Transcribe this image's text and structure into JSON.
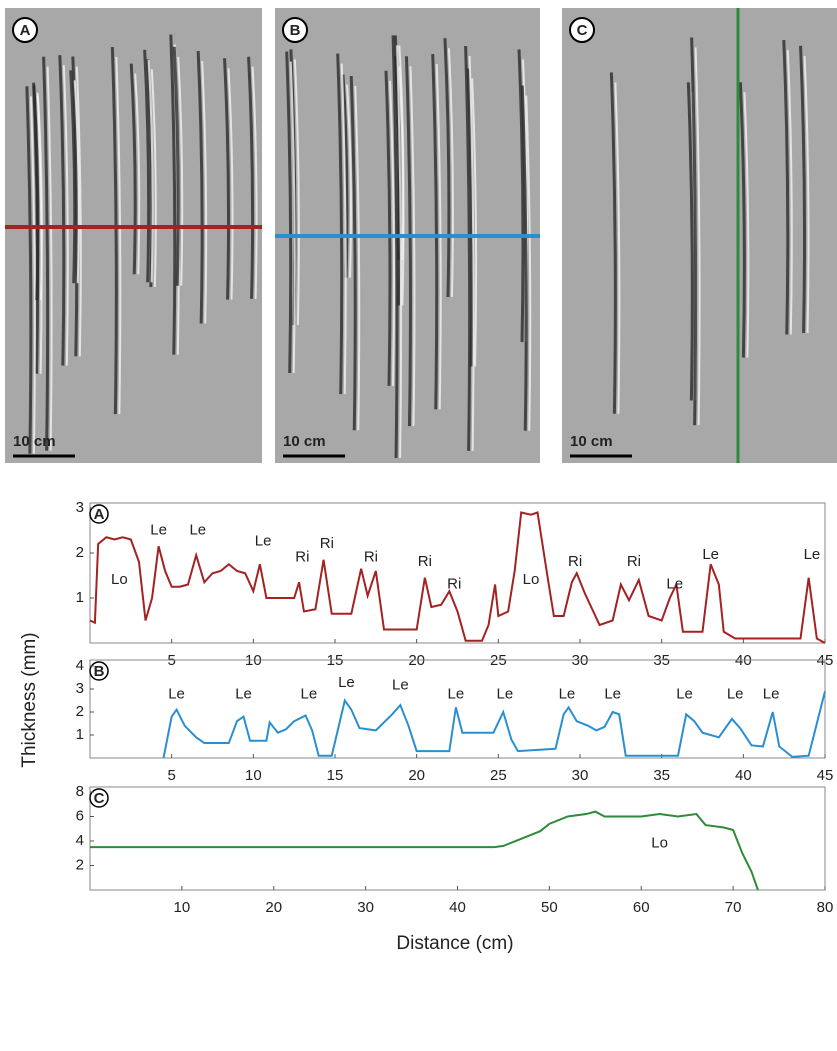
{
  "panels": [
    {
      "label": "A",
      "scale": "10 cm"
    },
    {
      "label": "B",
      "scale": "10 cm"
    },
    {
      "label": "C",
      "scale": "10 cm"
    }
  ],
  "chart_data": [
    {
      "type": "line",
      "label": "A",
      "xlim": [
        0,
        45
      ],
      "ylim": [
        0,
        3
      ],
      "xticks": [
        5,
        10,
        15,
        20,
        25,
        30,
        35,
        40,
        45
      ],
      "yticks": [
        1,
        2,
        3
      ],
      "series": [
        {
          "color": "#a32222",
          "x": [
            0,
            0.3,
            0.5,
            1,
            1.5,
            2,
            2.5,
            3,
            3.4,
            3.8,
            4.2,
            4.6,
            5,
            5.5,
            6,
            6.5,
            7,
            7.5,
            8,
            8.5,
            9,
            9.5,
            10,
            10.4,
            10.8,
            12.5,
            12.8,
            13.1,
            13.8,
            14.3,
            14.8,
            16,
            16.6,
            17,
            17.5,
            18,
            20,
            20.5,
            20.9,
            21.5,
            22,
            22.5,
            23,
            24,
            24.4,
            24.8,
            25,
            25.6,
            26,
            26.4,
            27,
            27.4,
            28,
            28.4,
            29,
            29.5,
            29.8,
            30.3,
            31.2,
            32,
            32.5,
            33,
            33.6,
            34.2,
            35,
            35.5,
            35.9,
            36.3,
            37.5,
            38,
            38.5,
            38.8,
            39.5,
            43.5,
            44,
            44.5,
            45
          ],
          "values": [
            0.5,
            0.45,
            2.2,
            2.35,
            2.3,
            2.35,
            2.3,
            1.8,
            0.5,
            1.0,
            2.15,
            1.6,
            1.25,
            1.25,
            1.3,
            1.95,
            1.35,
            1.55,
            1.6,
            1.75,
            1.6,
            1.55,
            1.15,
            1.75,
            1.0,
            1.0,
            1.35,
            0.7,
            0.75,
            1.85,
            0.65,
            0.65,
            1.65,
            1.05,
            1.6,
            0.3,
            0.3,
            1.45,
            0.8,
            0.85,
            1.15,
            0.7,
            0.05,
            0.05,
            0.4,
            1.3,
            0.6,
            0.7,
            1.6,
            2.9,
            2.85,
            2.9,
            1.5,
            0.6,
            0.6,
            1.35,
            1.55,
            1.1,
            0.4,
            0.5,
            1.3,
            0.95,
            1.4,
            0.6,
            0.5,
            1.0,
            1.3,
            0.25,
            0.25,
            1.75,
            1.3,
            0.25,
            0.1,
            0.1,
            1.45,
            0.1,
            0
          ]
        }
      ],
      "annotations": [
        {
          "text": "Lo",
          "x": 1.8,
          "y": 1.4
        },
        {
          "text": "Le",
          "x": 4.2,
          "y": 2.5
        },
        {
          "text": "Le",
          "x": 6.6,
          "y": 2.5
        },
        {
          "text": "Le",
          "x": 10.6,
          "y": 2.25
        },
        {
          "text": "Ri",
          "x": 13,
          "y": 1.9
        },
        {
          "text": "Ri",
          "x": 14.5,
          "y": 2.2
        },
        {
          "text": "Ri",
          "x": 17.2,
          "y": 1.9
        },
        {
          "text": "Ri",
          "x": 20.5,
          "y": 1.8
        },
        {
          "text": "Ri",
          "x": 22.3,
          "y": 1.3
        },
        {
          "text": "Lo",
          "x": 27,
          "y": 1.4
        },
        {
          "text": "Ri",
          "x": 29.7,
          "y": 1.8
        },
        {
          "text": "Ri",
          "x": 33.3,
          "y": 1.8
        },
        {
          "text": "Le",
          "x": 35.8,
          "y": 1.3
        },
        {
          "text": "Le",
          "x": 38,
          "y": 1.95
        },
        {
          "text": "Le",
          "x": 44.2,
          "y": 1.95
        }
      ]
    },
    {
      "type": "line",
      "label": "B",
      "ylabel": "Thickness (mm)",
      "xlim": [
        0,
        45
      ],
      "ylim": [
        0,
        4
      ],
      "xticks": [
        5,
        10,
        15,
        20,
        25,
        30,
        35,
        40,
        45
      ],
      "yticks": [
        1,
        2,
        3,
        4
      ],
      "series": [
        {
          "color": "#2a8fd0",
          "x": [
            4.5,
            5,
            5.3,
            5.8,
            6.5,
            7,
            8.5,
            9,
            9.4,
            9.8,
            10.8,
            11,
            11.5,
            12,
            12.5,
            13.2,
            13.6,
            14,
            14.8,
            15.2,
            15.6,
            16,
            16.5,
            17.5,
            18.5,
            19,
            19.5,
            20,
            22,
            22.4,
            22.8,
            24.7,
            25.3,
            25.8,
            26.2,
            28.5,
            29,
            29.3,
            29.8,
            30.5,
            31,
            31.5,
            32,
            32.4,
            32.8,
            36,
            36.5,
            37,
            37.5,
            38.5,
            39.3,
            39.8,
            40.5,
            41.2,
            41.8,
            42.2,
            43,
            44,
            44.5,
            45
          ],
          "values": [
            0,
            1.8,
            2.1,
            1.4,
            0.9,
            0.65,
            0.65,
            1.6,
            1.8,
            0.75,
            0.75,
            1.55,
            1.1,
            1.25,
            1.6,
            1.85,
            1.2,
            0.1,
            0.1,
            1.3,
            2.5,
            2.1,
            1.3,
            1.2,
            1.9,
            2.3,
            1.4,
            0.3,
            0.3,
            2.2,
            1.1,
            1.1,
            2.0,
            0.8,
            0.3,
            0.4,
            1.9,
            2.2,
            1.6,
            1.4,
            1.2,
            1.35,
            2.0,
            1.9,
            0.1,
            0.1,
            1.9,
            1.6,
            1.1,
            0.9,
            1.7,
            1.3,
            0.55,
            0.5,
            2.0,
            0.5,
            0.05,
            0.1,
            1.5,
            2.9
          ]
        }
      ],
      "annotations": [
        {
          "text": "Le",
          "x": 5.3,
          "y": 2.75
        },
        {
          "text": "Le",
          "x": 9.4,
          "y": 2.75
        },
        {
          "text": "Le",
          "x": 13.4,
          "y": 2.75
        },
        {
          "text": "Le",
          "x": 15.7,
          "y": 3.25
        },
        {
          "text": "Le",
          "x": 19,
          "y": 3.15
        },
        {
          "text": "Le",
          "x": 22.4,
          "y": 2.75
        },
        {
          "text": "Le",
          "x": 25.4,
          "y": 2.75
        },
        {
          "text": "Le",
          "x": 29.2,
          "y": 2.75
        },
        {
          "text": "Le",
          "x": 32,
          "y": 2.75
        },
        {
          "text": "Le",
          "x": 36.4,
          "y": 2.75
        },
        {
          "text": "Le",
          "x": 39.5,
          "y": 2.75
        },
        {
          "text": "Le",
          "x": 41.7,
          "y": 2.75
        }
      ]
    },
    {
      "type": "line",
      "label": "C",
      "xlabel": "Distance (cm)",
      "xlim": [
        0,
        80
      ],
      "ylim": [
        0,
        8
      ],
      "xticks": [
        10,
        20,
        30,
        40,
        50,
        60,
        70,
        80
      ],
      "yticks": [
        2,
        4,
        6,
        8
      ],
      "series": [
        {
          "color": "#2e8b3a",
          "x": [
            0,
            44,
            45,
            47,
            49,
            50,
            52,
            54,
            55,
            56,
            60,
            62,
            64,
            66,
            67,
            69,
            70,
            71,
            72,
            72.7
          ],
          "values": [
            3.5,
            3.5,
            3.6,
            4.2,
            4.8,
            5.4,
            6.0,
            6.2,
            6.4,
            6.0,
            6.0,
            6.2,
            6.0,
            6.2,
            5.3,
            5.1,
            4.9,
            3.0,
            1.5,
            0
          ]
        }
      ],
      "annotations": [
        {
          "text": "Lo",
          "x": 62,
          "y": 3.8
        }
      ]
    }
  ]
}
